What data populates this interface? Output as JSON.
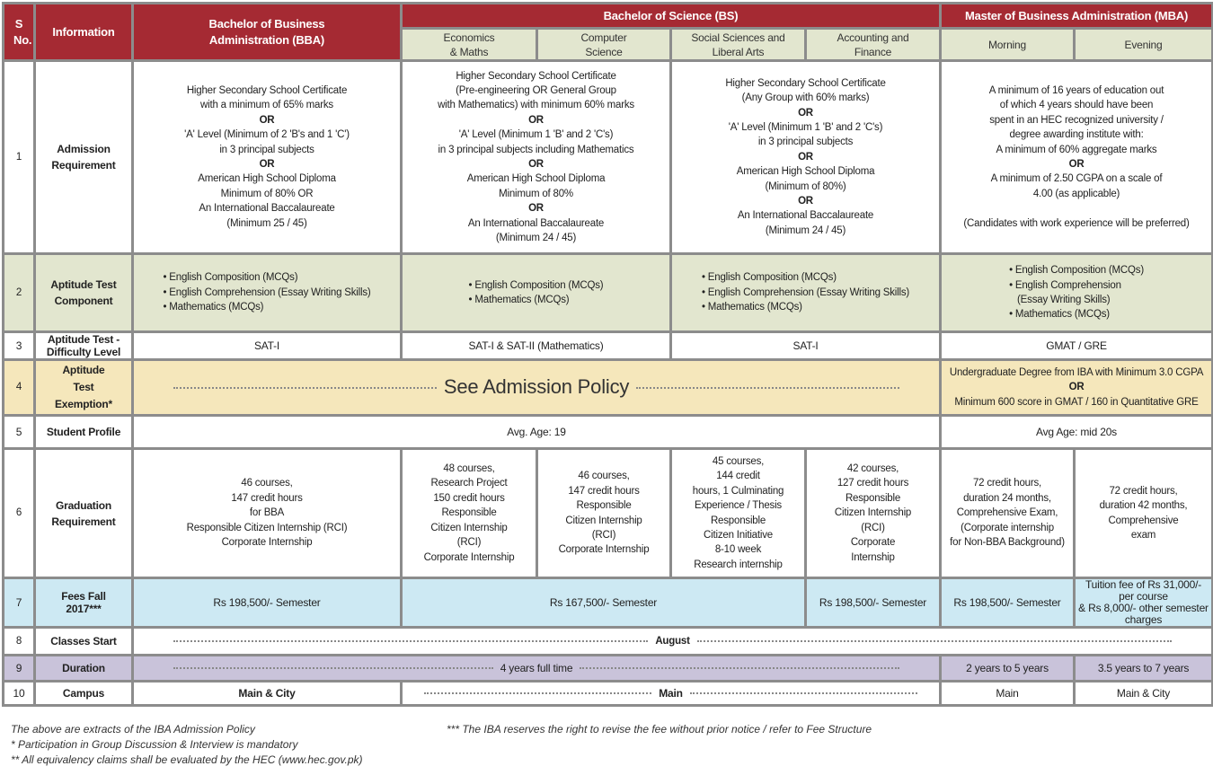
{
  "header": {
    "sno": "S No.",
    "information": "Information",
    "bba": "Bachelor of Business Administration (BBA)",
    "bs": "Bachelor of Science (BS)",
    "mba": "Master of Business Administration (MBA)",
    "bs_sub": [
      "Economics\n& Maths",
      "Computer\nScience",
      "Social Sciences and\nLiberal Arts",
      "Accounting and\nFinance"
    ],
    "mba_sub": [
      "Morning",
      "Evening"
    ]
  },
  "rows": {
    "r1": {
      "no": "1",
      "label": "Admission\nRequirement",
      "bba": [
        "Higher Secondary School Certificate",
        "with a minimum of 65% marks",
        "OR",
        "'A' Level (Minimum of 2 'B's and 1 'C')",
        "in 3 principal subjects",
        "OR",
        "American High School Diploma",
        "Minimum of 80% OR",
        "An International Baccalaureate",
        "(Minimum 25 / 45)"
      ],
      "bs_a": [
        "Higher Secondary School Certificate",
        "(Pre-engineering OR General Group",
        "with Mathematics) with minimum 60% marks",
        "OR",
        "'A' Level (Minimum 1 'B' and 2 'C's)",
        "in 3 principal subjects including Mathematics",
        "OR",
        "American High School Diploma",
        "Minimum of 80%",
        "OR",
        "An International Baccalaureate",
        "(Minimum 24 / 45)"
      ],
      "bs_b": [
        "Higher Secondary School Certificate",
        "(Any Group with 60% marks)",
        "OR",
        "'A' Level (Minimum 1 'B' and 2 'C's)",
        "in 3 principal subjects",
        "OR",
        "American High School Diploma",
        "(Minimum of 80%)",
        "OR",
        "An International Baccalaureate",
        "(Minimum 24 / 45)"
      ],
      "mba": [
        "A minimum of 16 years of education out",
        "of which 4 years should have been",
        "spent in an HEC recognized university /",
        "degree awarding institute with:",
        "A minimum of 60% aggregate marks",
        "OR",
        "A minimum of 2.50 CGPA on a scale of",
        "4.00 (as applicable)",
        "",
        "(Candidates with work experience will be preferred)"
      ]
    },
    "r2": {
      "no": "2",
      "label": "Aptitude Test\nComponent",
      "bba": [
        "• English Composition (MCQs)",
        "• English Comprehension (Essay Writing Skills)",
        "• Mathematics (MCQs)"
      ],
      "bs_a": [
        "• English Composition (MCQs)",
        "• Mathematics (MCQs)"
      ],
      "bs_b": [
        "• English Composition (MCQs)",
        "• English Comprehension (Essay Writing Skills)",
        "• Mathematics (MCQs)"
      ],
      "mba": [
        "• English Composition (MCQs)",
        "• English Comprehension",
        "   (Essay Writing Skills)",
        "• Mathematics (MCQs)"
      ]
    },
    "r3": {
      "no": "3",
      "label": "Aptitude Test -\nDifficulty Level",
      "bba": "SAT-I",
      "bs_a": "SAT-I & SAT-II (Mathematics)",
      "bs_b": "SAT-I",
      "mba": "GMAT / GRE"
    },
    "r4": {
      "no": "4",
      "label": "Aptitude\nTest\nExemption*",
      "policy": "See Admission Policy",
      "mba": [
        "Undergraduate Degree from IBA with Minimum 3.0 CGPA",
        "OR",
        "Minimum 600 score in GMAT / 160 in Quantitative GRE"
      ]
    },
    "r5": {
      "no": "5",
      "label": "Student Profile",
      "undergrad": "Avg. Age: 19",
      "mba": "Avg Age: mid 20s"
    },
    "r6": {
      "no": "6",
      "label": "Graduation\nRequirement",
      "bba": "46 courses,\n147 credit hours\nfor BBA\nResponsible Citizen Internship (RCI)\nCorporate Internship",
      "econ": "48 courses,\nResearch Project\n150 credit hours\nResponsible\nCitizen  Internship\n(RCI)\nCorporate Internship",
      "cs": "46 courses,\n147 credit hours\nResponsible\nCitizen Internship\n(RCI)\nCorporate Internship",
      "ss": "45 courses,\n144 credit\nhours, 1 Culminating\nExperience / Thesis\nResponsible\nCitizen Initiative\n8-10 week\nResearch internship",
      "af": "42 courses,\n127 credit hours\nResponsible\nCitizen Internship\n(RCI)\nCorporate\nInternship",
      "morning": "72 credit hours,\nduration 24 months,\nComprehensive Exam,\n(Corporate internship\nfor Non-BBA Background)",
      "evening": "72 credit hours,\nduration 42 months,\nComprehensive\nexam"
    },
    "r7": {
      "no": "7",
      "label": "Fees Fall\n2017***",
      "bba": "Rs 198,500/- Semester",
      "bs": "Rs 167,500/- Semester",
      "af": "Rs 198,500/- Semester",
      "morning": "Rs 198,500/- Semester",
      "evening": "Tuition fee of Rs 31,000/- per course\n& Rs 8,000/- other semester charges"
    },
    "r8": {
      "no": "8",
      "label": "Classes Start",
      "value": "August"
    },
    "r9": {
      "no": "9",
      "label": "Duration",
      "undergrad": "4 years full time",
      "morning": "2 years to 5 years",
      "evening": "3.5 years to 7 years"
    },
    "r10": {
      "no": "10",
      "label": "Campus",
      "bba": "Main & City",
      "bs": "Main",
      "morning": "Main",
      "evening": "Main & City"
    }
  },
  "footnotes": {
    "left": [
      "The above are extracts of the IBA Admission Policy",
      "* Participation in Group Discussion & Interview is mandatory",
      "** All equivalency claims shall be evaluated by the HEC (www.hec.gov.pk)"
    ],
    "right": "*** The IBA reserves the right to revise the fee without prior notice / refer to Fee Structure"
  },
  "colors": {
    "header_red": "#a52a33",
    "sub_green": "#e2e6cf",
    "exemption_yellow": "#f5e7bb",
    "fees_blue": "#cde9f3",
    "duration_purple": "#c9c3da",
    "border": "#8c8c8c"
  }
}
